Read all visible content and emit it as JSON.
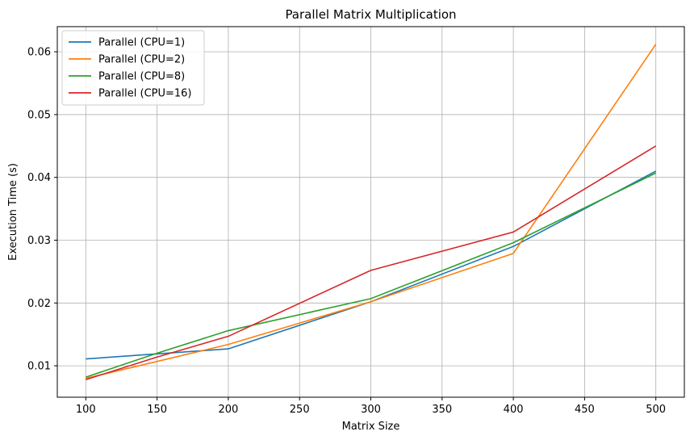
{
  "chart_data": {
    "type": "line",
    "title": "Parallel Matrix Multiplication",
    "xlabel": "Matrix Size",
    "ylabel": "Execution Time (s)",
    "x": [
      100,
      150,
      200,
      300,
      400,
      500
    ],
    "xlim": [
      80,
      520
    ],
    "ylim": [
      0.005,
      0.064
    ],
    "xticks": [
      100,
      150,
      200,
      250,
      300,
      350,
      400,
      450,
      500
    ],
    "yticks": [
      0.01,
      0.02,
      0.03,
      0.04,
      0.05,
      0.06
    ],
    "xtick_labels": [
      "100",
      "150",
      "200",
      "250",
      "300",
      "350",
      "400",
      "450",
      "500"
    ],
    "ytick_labels": [
      "0.01",
      "0.02",
      "0.03",
      "0.04",
      "0.05",
      "0.06"
    ],
    "grid": true,
    "legend_position": "top-left",
    "series": [
      {
        "name": "Parallel (CPU=1)",
        "color": "#1f77b4",
        "values": [
          0.0111,
          0.0119,
          0.0127,
          0.0202,
          0.029,
          0.041
        ]
      },
      {
        "name": "Parallel (CPU=2)",
        "color": "#ff7f0e",
        "values": [
          0.008,
          0.0107,
          0.0134,
          0.0202,
          0.0279,
          0.0612
        ]
      },
      {
        "name": "Parallel (CPU=8)",
        "color": "#2ca02c",
        "values": [
          0.0082,
          0.012,
          0.0156,
          0.0207,
          0.0296,
          0.0407
        ]
      },
      {
        "name": "Parallel (CPU=16)",
        "color": "#d62728",
        "values": [
          0.0078,
          0.0114,
          0.0147,
          0.0252,
          0.0313,
          0.045
        ]
      }
    ]
  }
}
